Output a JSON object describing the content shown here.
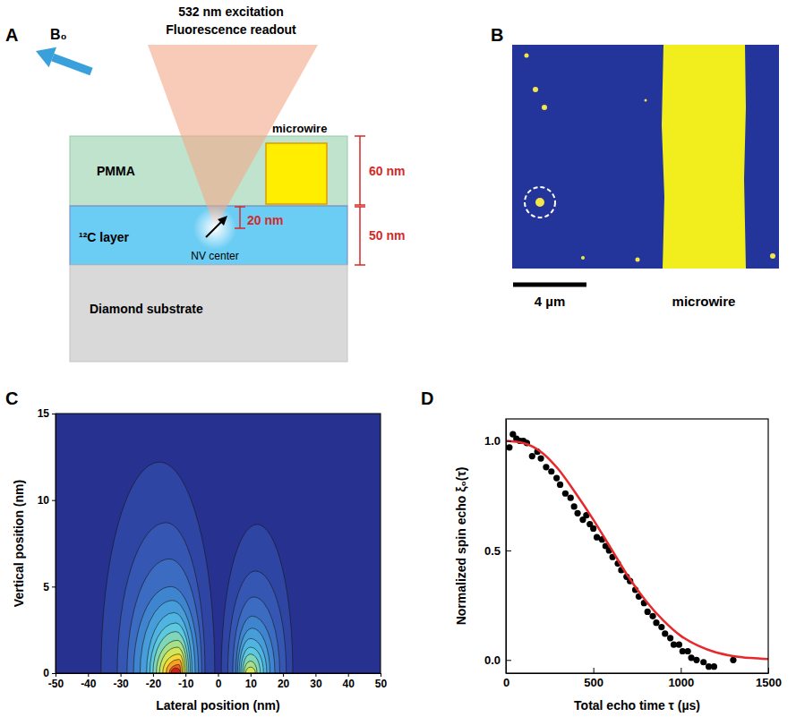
{
  "diagram": {
    "letter": "A",
    "beam_label": [
      "532 nm excitation",
      "Fluorescence readout"
    ],
    "field_label": "B₀",
    "pmma": "PMMA",
    "c12_layer": "¹²C layer",
    "substrate": "Diamond substrate",
    "microwire": "microwire",
    "nv_center": "NV center",
    "dims": [
      "60 nm",
      "20 nm",
      "50 nm"
    ]
  },
  "image": {
    "letter": "B",
    "scale_bar": "4 µm",
    "microwire": "microwire"
  },
  "chart_data": [
    {
      "type": "contour",
      "letter": "C",
      "xlabel": "Lateral position (nm)",
      "ylabel": "Vertical position (nm)",
      "xlim": [
        -50,
        50
      ],
      "xticks": [
        -50,
        -40,
        -30,
        -20,
        -10,
        0,
        10,
        20,
        30,
        40,
        50
      ],
      "ylim": [
        0,
        15
      ],
      "yticks": [
        0,
        5,
        10,
        15
      ],
      "grid": false,
      "series": [
        {
          "color": "#2f45a3",
          "x": [
            -36,
            -18,
            -1
          ],
          "values": [
            0,
            12.2,
            0
          ]
        },
        {
          "color": "#3557b3",
          "x": [
            -31,
            -16,
            -4
          ],
          "values": [
            0,
            8.7,
            0
          ]
        },
        {
          "color": "#3b6cc2",
          "x": [
            -28,
            -15,
            -5
          ],
          "values": [
            0,
            6.6,
            0
          ]
        },
        {
          "color": "#3f84cf",
          "x": [
            -26,
            -14.5,
            -6
          ],
          "values": [
            0,
            5.0,
            0
          ]
        },
        {
          "color": "#469dda",
          "x": [
            -24,
            -14,
            -7
          ],
          "values": [
            0,
            4.2,
            0
          ]
        },
        {
          "color": "#4fb4e2",
          "x": [
            -22,
            -13.5,
            -8
          ],
          "values": [
            0,
            3.5,
            0
          ]
        },
        {
          "color": "#5cc9e0",
          "x": [
            -21,
            -13,
            -8.5
          ],
          "values": [
            0,
            2.9,
            0
          ]
        },
        {
          "color": "#7fd6b8",
          "x": [
            -20,
            -13,
            -9
          ],
          "values": [
            0,
            2.4,
            0
          ]
        },
        {
          "color": "#a6e08a",
          "x": [
            -19,
            -12.5,
            -9.5
          ],
          "values": [
            0,
            1.9,
            0
          ]
        },
        {
          "color": "#d3e65a",
          "x": [
            -18,
            -12.5,
            -10
          ],
          "values": [
            0,
            1.5,
            0
          ]
        },
        {
          "color": "#f5d836",
          "x": [
            -17,
            -12,
            -10.5
          ],
          "values": [
            0,
            1.1,
            0
          ]
        },
        {
          "color": "#f7a126",
          "x": [
            -16,
            -12,
            -11
          ],
          "values": [
            0,
            0.8,
            0
          ]
        },
        {
          "color": "#ee5e1c",
          "x": [
            -15,
            -12,
            -11.5
          ],
          "values": [
            0,
            0.5,
            0
          ]
        },
        {
          "color": "#d1201a",
          "x": [
            -14.5,
            -13,
            -11.5
          ],
          "values": [
            0,
            0.3,
            0
          ]
        },
        {
          "color": "#2f45a3",
          "x": [
            1,
            12,
            23
          ],
          "values": [
            0,
            8.6,
            0
          ]
        },
        {
          "color": "#3557b3",
          "x": [
            3,
            11.5,
            21
          ],
          "values": [
            0,
            5.9,
            0
          ]
        },
        {
          "color": "#3b6cc2",
          "x": [
            4.5,
            11,
            19
          ],
          "values": [
            0,
            4.4,
            0
          ]
        },
        {
          "color": "#3f84cf",
          "x": [
            5.5,
            10.5,
            17.5
          ],
          "values": [
            0,
            3.3,
            0
          ]
        },
        {
          "color": "#469dda",
          "x": [
            6,
            10.5,
            16
          ],
          "values": [
            0,
            2.6,
            0
          ]
        },
        {
          "color": "#4fb4e2",
          "x": [
            6.5,
            10,
            15
          ],
          "values": [
            0,
            2.0,
            0
          ]
        },
        {
          "color": "#5cc9e0",
          "x": [
            7,
            10,
            14
          ],
          "values": [
            0,
            1.5,
            0
          ]
        },
        {
          "color": "#7fd6b8",
          "x": [
            7.5,
            10,
            13
          ],
          "values": [
            0,
            1.1,
            0
          ]
        },
        {
          "color": "#a6e08a",
          "x": [
            8,
            10,
            12
          ],
          "values": [
            0,
            0.7,
            0
          ]
        },
        {
          "color": "#d3e65a",
          "x": [
            8.5,
            10,
            11.5
          ],
          "values": [
            0,
            0.35,
            0
          ]
        }
      ]
    },
    {
      "type": "scatter",
      "letter": "D",
      "xlabel": "Total echo time τ (µs)",
      "ylabel": "Normalized spin echo ξ₀(τ)",
      "xlim": [
        0,
        1500
      ],
      "xticks": [
        0,
        500,
        1000,
        1500
      ],
      "ylim": [
        -0.06,
        1.1
      ],
      "yticks": [
        {
          "value": 0,
          "label": "0.0"
        },
        {
          "value": 0.5,
          "label": "0.5"
        },
        {
          "value": 1,
          "label": "1.0"
        }
      ],
      "grid": false,
      "series": [
        {
          "type": "scatter",
          "color": "#000000",
          "marker": "circle",
          "x": [
            20,
            40,
            60,
            80,
            100,
            120,
            150,
            180,
            200,
            230,
            260,
            290,
            310,
            340,
            370,
            390,
            410,
            440,
            460,
            480,
            500,
            520,
            550,
            570,
            590,
            610,
            640,
            660,
            690,
            710,
            740,
            760,
            790,
            810,
            840,
            860,
            890,
            910,
            940,
            960,
            990,
            1010,
            1040,
            1060,
            1090,
            1130,
            1160,
            1190,
            1300
          ],
          "values": [
            0.97,
            1.03,
            1.01,
            1.0,
            1.0,
            0.99,
            0.93,
            0.95,
            0.92,
            0.88,
            0.86,
            0.83,
            0.8,
            0.76,
            0.74,
            0.7,
            0.67,
            0.64,
            0.66,
            0.62,
            0.6,
            0.56,
            0.55,
            0.52,
            0.5,
            0.47,
            0.44,
            0.41,
            0.38,
            0.36,
            0.32,
            0.29,
            0.26,
            0.22,
            0.2,
            0.17,
            0.15,
            0.12,
            0.1,
            0.07,
            0.07,
            0.04,
            0.04,
            0.01,
            0.0,
            -0.01,
            -0.03,
            -0.03,
            0.0
          ]
        },
        {
          "type": "line",
          "color": "#e8282a",
          "line_style": "solid",
          "x": [
            0,
            100,
            200,
            300,
            400,
            500,
            600,
            700,
            800,
            900,
            1000,
            1100,
            1200,
            1300,
            1400,
            1500
          ],
          "values": [
            1.0,
            0.99,
            0.95,
            0.87,
            0.76,
            0.64,
            0.51,
            0.38,
            0.27,
            0.18,
            0.11,
            0.065,
            0.035,
            0.018,
            0.009,
            0.004
          ]
        }
      ]
    }
  ]
}
